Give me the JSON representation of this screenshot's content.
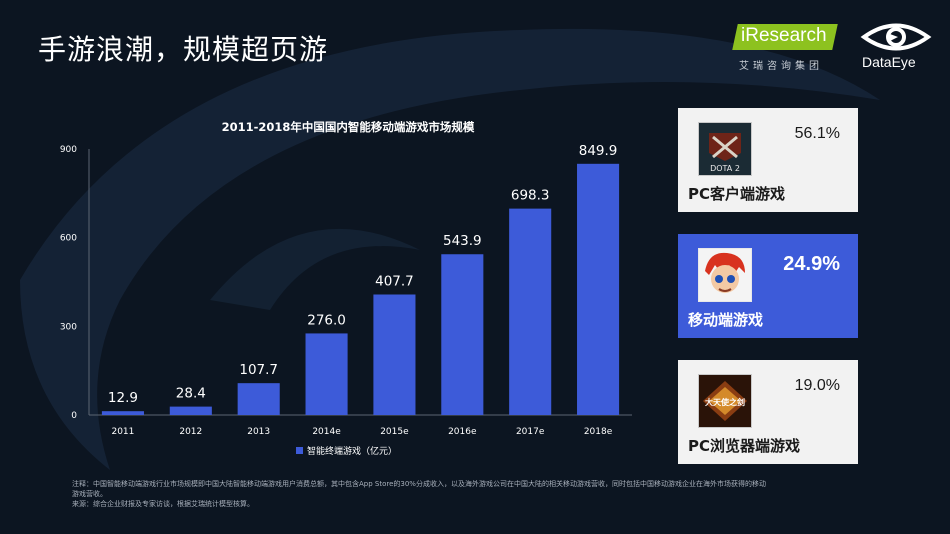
{
  "page_title": "手游浪潮，规模超页游",
  "logos": {
    "iresearch": "iResearch",
    "iresearch_sub": "艾瑞咨询集团",
    "dataeye": "DataEye"
  },
  "colors": {
    "background": "#0c1521",
    "bar": "#3d5bd9",
    "highlight_card": "#3d5bd9",
    "card": "#f2f2f2"
  },
  "chart_data": {
    "type": "bar",
    "title": "2011-2018年中国国内智能移动端游戏市场规模",
    "categories": [
      "2011",
      "2012",
      "2013",
      "2014e",
      "2015e",
      "2016e",
      "2017e",
      "2018e"
    ],
    "series": [
      {
        "name": "智能终端游戏（亿元）",
        "values": [
          12.9,
          28.4,
          107.7,
          276.0,
          407.7,
          543.9,
          698.3,
          849.9
        ],
        "labels": [
          "12.9",
          "28.4",
          "107.7",
          "276.0",
          "407.7",
          "543.9",
          "698.3",
          "849.9"
        ]
      }
    ],
    "ylim": [
      0,
      900
    ],
    "yticks": [
      0,
      300,
      600,
      900
    ],
    "grid": false,
    "legend_position": "bottom"
  },
  "cards": [
    {
      "percent": "56.1%",
      "label": "PC客户端游戏",
      "icon": "dota2-game-icon",
      "thumb_text": "DOTA 2",
      "highlight": false
    },
    {
      "percent": "24.9%",
      "label": "移动端游戏",
      "icon": "mobile-game-character-icon",
      "highlight": true
    },
    {
      "percent": "19.0%",
      "label": "PC浏览器端游戏",
      "icon": "web-game-logo-icon",
      "thumb_text": "大天使之剑",
      "highlight": false
    }
  ],
  "footnote": {
    "line1": "注释：中国智能移动端游戏行业市场规模即中国大陆智能移动端游戏用户消费总额，其中包含App Store的30%分成收入，以及海外游戏公司在中国大陆的相关移动游戏营收，同时包括中国移动游戏企业在海外市场获得的移动",
    "line2": "游戏营收。",
    "line3": "来源：综合企业财报及专家访谈，根据艾瑞统计模型核算。"
  }
}
